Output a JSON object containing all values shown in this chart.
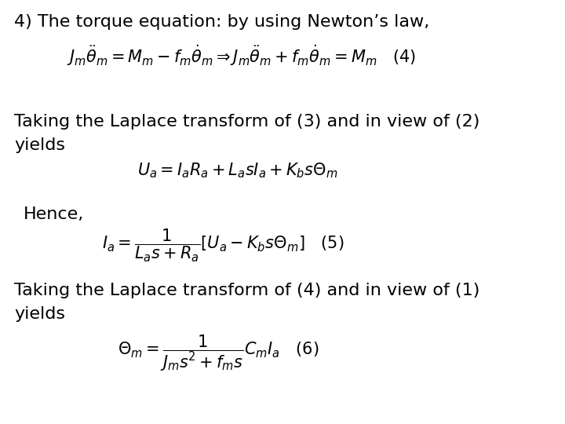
{
  "background_color": "#ffffff",
  "text_color": "#000000",
  "figsize": [
    7.2,
    5.4
  ],
  "dpi": 100,
  "title": "4) The torque equation: by using Newton’s law,",
  "text2a": "Taking the Laplace transform of (3) and in view of (2)",
  "text2b": "yields",
  "text3": "Hence,",
  "text4a": "Taking the Laplace transform of (4) and in view of (1)",
  "text4b": "yields",
  "fontsize_text": 16,
  "fontsize_eq": 15
}
